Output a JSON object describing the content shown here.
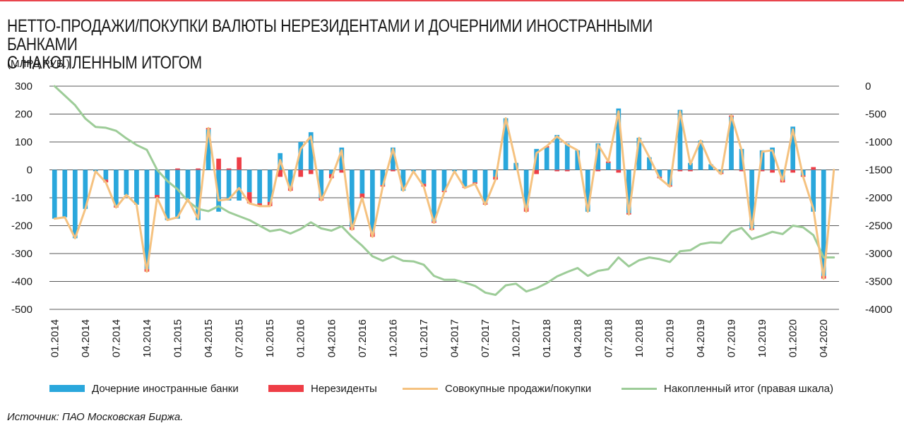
{
  "header": {
    "title_line1": "НЕТТО-ПРОДАЖИ/ПОКУПКИ ВАЛЮТЫ НЕРЕЗИДЕНТАМИ И ДОЧЕРНИМИ ИНОСТРАННЫМИ БАНКАМИ",
    "title_line2": "С НАКОПЛЕННЫМ ИТОГОМ",
    "units": "(МЛРД РУБ.)",
    "accent_color": "#e8454d"
  },
  "footer": {
    "source": "Источник: ПАО Московская Биржа."
  },
  "chart_data": {
    "type": "bar",
    "combo": [
      "stacked-bar",
      "line",
      "line"
    ],
    "grid": true,
    "legend_position": "bottom",
    "x_ticks": [
      "01.2014",
      "04.2014",
      "07.2014",
      "10.2014",
      "01.2015",
      "04.2015",
      "07.2015",
      "10.2015",
      "01.2016",
      "04.2016",
      "07.2016",
      "10.2016",
      "01.2017",
      "04.2017",
      "07.2017",
      "10.2017",
      "01.2018",
      "04.2018",
      "07.2018",
      "10.2018",
      "01.2019",
      "04.2019",
      "07.2019",
      "10.2019",
      "01.2020",
      "04.2020"
    ],
    "y_left": {
      "min": -500,
      "max": 300,
      "ticks": [
        300,
        200,
        100,
        0,
        -100,
        -200,
        -300,
        -400,
        -500
      ]
    },
    "y_right": {
      "min": -4000,
      "max": 0,
      "ticks": [
        0,
        -500,
        -1000,
        -1500,
        -2000,
        -2500,
        -3000,
        -3500,
        -4000
      ]
    },
    "series": [
      {
        "name": "Дочерние иностранные банки",
        "kind": "bar",
        "axis": "left",
        "color": "#2aa7dc",
        "values": [
          -175,
          -170,
          -245,
          -140,
          -5,
          -35,
          -130,
          -90,
          -125,
          -355,
          -90,
          -180,
          -175,
          -105,
          -180,
          145,
          -150,
          -110,
          -110,
          -80,
          -120,
          -115,
          60,
          -60,
          100,
          135,
          -100,
          -15,
          80,
          -205,
          -85,
          -225,
          -55,
          80,
          -75,
          -5,
          -50,
          -185,
          -75,
          -5,
          -60,
          -45,
          -120,
          -25,
          185,
          25,
          -135,
          75,
          80,
          125,
          95,
          70,
          -150,
          95,
          25,
          220,
          -155,
          115,
          45,
          -25,
          -55,
          215,
          25,
          105,
          20,
          -10,
          190,
          75,
          -210,
          70,
          80,
          -35,
          155,
          -20,
          -150,
          -380,
          0
        ]
      },
      {
        "name": "Нерезиденты",
        "kind": "bar",
        "axis": "left",
        "color": "#ee3e46",
        "values": [
          0,
          0,
          0,
          0,
          0,
          -10,
          -5,
          0,
          0,
          -10,
          -10,
          0,
          5,
          0,
          5,
          5,
          40,
          5,
          45,
          -40,
          -10,
          -15,
          -25,
          -15,
          -25,
          -15,
          -10,
          -15,
          -10,
          -10,
          -15,
          -15,
          -5,
          -5,
          0,
          0,
          -10,
          -5,
          -5,
          0,
          -5,
          -5,
          -5,
          -10,
          0,
          0,
          -15,
          -15,
          5,
          -5,
          -5,
          0,
          0,
          -5,
          5,
          -10,
          -5,
          0,
          0,
          -5,
          -5,
          -5,
          -5,
          0,
          0,
          -5,
          5,
          -5,
          -5,
          -5,
          -10,
          -10,
          -10,
          -5,
          10,
          -10,
          0
        ]
      },
      {
        "name": "Совокупные продажи/покупки",
        "kind": "line",
        "axis": "left",
        "color": "#f5c280",
        "values": [
          -175,
          -170,
          -245,
          -140,
          -5,
          -45,
          -135,
          -90,
          -125,
          -365,
          -100,
          -180,
          -170,
          -105,
          -175,
          150,
          -110,
          -105,
          -65,
          -120,
          -130,
          -130,
          35,
          -75,
          75,
          120,
          -110,
          -30,
          70,
          -215,
          -100,
          -240,
          -60,
          75,
          -75,
          -5,
          -60,
          -190,
          -80,
          -5,
          -65,
          -50,
          -125,
          -35,
          185,
          25,
          -150,
          60,
          85,
          120,
          90,
          70,
          -150,
          90,
          30,
          210,
          -160,
          115,
          45,
          -30,
          -60,
          210,
          20,
          105,
          20,
          -15,
          195,
          70,
          -215,
          65,
          70,
          -40,
          145,
          -25,
          -140,
          -390,
          0
        ]
      },
      {
        "name": "Накопленный итог (правая шкала)",
        "kind": "line",
        "axis": "right",
        "color": "#9dcc98",
        "values": [
          0,
          -170,
          -340,
          -580,
          -730,
          -745,
          -800,
          -935,
          -1055,
          -1140,
          -1500,
          -1700,
          -1850,
          -2060,
          -2200,
          -2240,
          -2150,
          -2260,
          -2330,
          -2400,
          -2500,
          -2600,
          -2570,
          -2640,
          -2560,
          -2440,
          -2550,
          -2590,
          -2510,
          -2700,
          -2860,
          -3050,
          -3130,
          -3050,
          -3130,
          -3140,
          -3200,
          -3400,
          -3470,
          -3470,
          -3520,
          -3580,
          -3700,
          -3740,
          -3570,
          -3540,
          -3680,
          -3620,
          -3530,
          -3410,
          -3330,
          -3260,
          -3400,
          -3310,
          -3280,
          -3070,
          -3230,
          -3120,
          -3070,
          -3100,
          -3150,
          -2960,
          -2940,
          -2830,
          -2800,
          -2810,
          -2610,
          -2540,
          -2740,
          -2680,
          -2610,
          -2650,
          -2500,
          -2530,
          -2670,
          -3070,
          -3070
        ]
      }
    ]
  }
}
